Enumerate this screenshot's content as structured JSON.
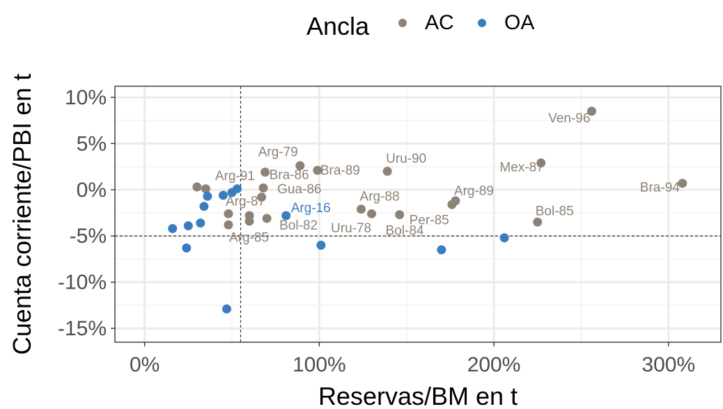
{
  "chart_data": {
    "type": "scatter",
    "xlabel": "Reservas/BM en t",
    "ylabel": "Cuenta corriente/PBI en t",
    "xlim": [
      -17,
      330
    ],
    "ylim": [
      -16.5,
      11.2
    ],
    "x_ticks": [
      0,
      100,
      200,
      300
    ],
    "x_tick_labels": [
      "0%",
      "100%",
      "200%",
      "300%"
    ],
    "y_ticks": [
      10,
      5,
      0,
      -5,
      -10,
      -15
    ],
    "y_tick_labels": [
      "10%",
      "5%",
      "0%",
      "-5%",
      "-10%",
      "-15%"
    ],
    "grid": true,
    "reference_lines": {
      "x": 55,
      "y": -5
    },
    "legend": {
      "title": "Ancla",
      "position": "top",
      "entries": [
        {
          "key": "AC",
          "label": "AC",
          "color": "#8e8276"
        },
        {
          "key": "OA",
          "label": "OA",
          "color": "#3a7dbf"
        }
      ]
    },
    "series": [
      {
        "name": "AC",
        "color": "#8e8276",
        "points": [
          {
            "x": 256,
            "y": 8.5,
            "label": "Ven-96"
          },
          {
            "x": 308,
            "y": 0.7,
            "label": "Bra-94"
          },
          {
            "x": 227,
            "y": 2.9,
            "label": "Mex-87"
          },
          {
            "x": 225,
            "y": -3.5,
            "label": "Bol-85"
          },
          {
            "x": 178,
            "y": -1.2,
            "label": "Arg-89"
          },
          {
            "x": 176,
            "y": -1.6
          },
          {
            "x": 146,
            "y": -2.7,
            "label": "Per-85"
          },
          {
            "x": 130,
            "y": -2.6,
            "label": "Bol-84"
          },
          {
            "x": 124,
            "y": -2.1,
            "label": "Arg-88"
          },
          {
            "x": 139,
            "y": 2.0,
            "label": "Uru-90"
          },
          {
            "x": 99,
            "y": 2.1,
            "label": "Bra-89"
          },
          {
            "x": 89,
            "y": 2.6,
            "label": "Arg-79"
          },
          {
            "x": 69,
            "y": 1.9,
            "label": "Bra-86"
          },
          {
            "x": 68,
            "y": 0.2,
            "label": "Gua-86"
          },
          {
            "x": 67,
            "y": -0.8
          },
          {
            "x": 70,
            "y": -3.1,
            "label": "Bol-82"
          },
          {
            "x": 60,
            "y": -2.8,
            "label": "Uru-78"
          },
          {
            "x": 60,
            "y": -3.4
          },
          {
            "x": 48,
            "y": -2.6,
            "label": "Arg-87"
          },
          {
            "x": 48,
            "y": -3.8,
            "label": "Arg-85"
          },
          {
            "x": 30,
            "y": 0.3,
            "label": "Arg-91"
          },
          {
            "x": 35,
            "y": 0.1
          }
        ]
      },
      {
        "name": "OA",
        "color": "#3a7dbf",
        "points": [
          {
            "x": 81,
            "y": -2.8,
            "label": "Arg-16"
          },
          {
            "x": 101,
            "y": -6.0
          },
          {
            "x": 170,
            "y": -6.5
          },
          {
            "x": 206,
            "y": -5.2
          },
          {
            "x": 16,
            "y": -4.2
          },
          {
            "x": 24,
            "y": -6.3
          },
          {
            "x": 25,
            "y": -3.9
          },
          {
            "x": 32,
            "y": -3.6
          },
          {
            "x": 34,
            "y": -1.8
          },
          {
            "x": 36,
            "y": -0.7
          },
          {
            "x": 45,
            "y": -0.6
          },
          {
            "x": 50,
            "y": -0.3
          },
          {
            "x": 53,
            "y": 0.1
          },
          {
            "x": 47,
            "y": -12.9
          }
        ]
      }
    ]
  }
}
